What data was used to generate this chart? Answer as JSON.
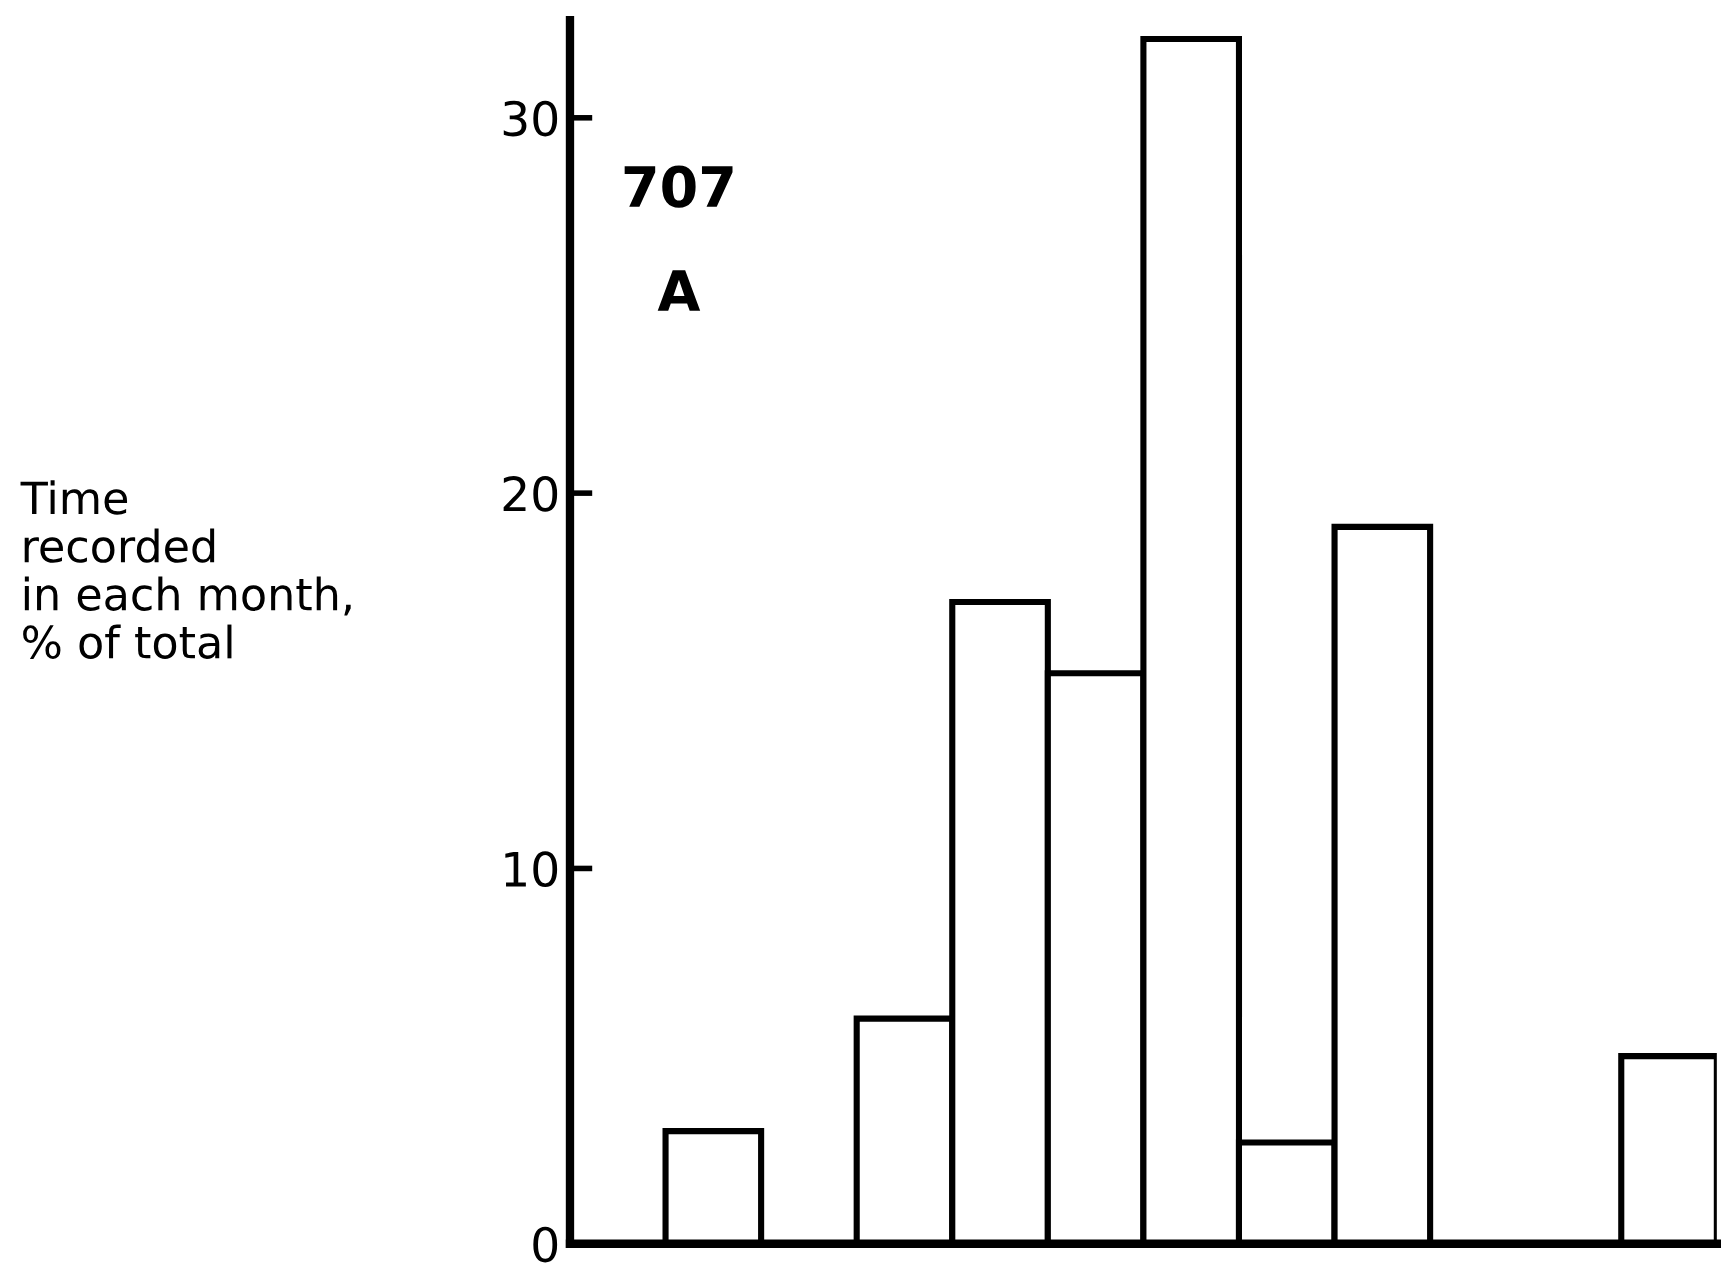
{
  "chart_data": {
    "type": "bar",
    "categories": [
      null,
      null,
      null,
      null,
      null,
      null,
      null,
      null,
      null,
      null,
      null,
      null
    ],
    "values": [
      0,
      3.0,
      0,
      6.0,
      17.1,
      15.2,
      32.1,
      2.7,
      19.1,
      0,
      0,
      5.0
    ],
    "color": "#ffffff",
    "ylabel": "Time\nrecorded\nin each month,\n% of total",
    "annotations": [
      "707",
      "A"
    ],
    "ylim": [
      0,
      32.6
    ],
    "yticks": [
      0,
      10,
      20,
      30
    ],
    "tick_labels": "y",
    "grid": false,
    "legend": false
  }
}
